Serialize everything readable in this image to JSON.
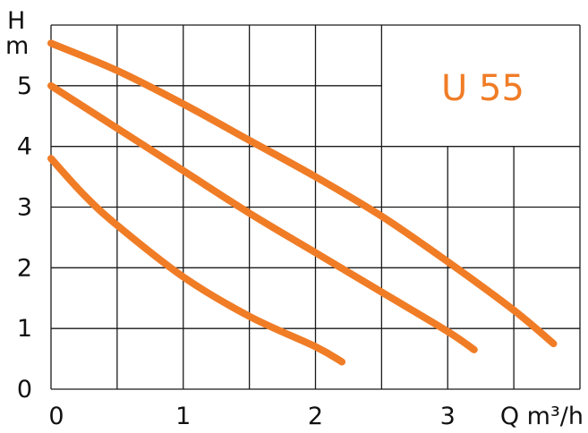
{
  "chart_data": {
    "type": "line",
    "label": "U 55",
    "xlabel": "Q m³/h",
    "ylabel_top": "H",
    "ylabel_unit": "m",
    "xlim": [
      0,
      4
    ],
    "ylim": [
      0,
      6
    ],
    "x_ticks": [
      {
        "value": 0,
        "label": "0"
      },
      {
        "value": 1,
        "label": "1"
      },
      {
        "value": 2,
        "label": "2"
      },
      {
        "value": 3,
        "label": "3"
      }
    ],
    "y_ticks": [
      {
        "value": 0,
        "label": "0"
      },
      {
        "value": 1,
        "label": "1"
      },
      {
        "value": 2,
        "label": "2"
      },
      {
        "value": 3,
        "label": "3"
      },
      {
        "value": 4,
        "label": "4"
      },
      {
        "value": 5,
        "label": "5"
      }
    ],
    "grid": true,
    "colors": {
      "curve": "#f07c26",
      "label": "#f07c26",
      "grid": "#1a1a1a"
    },
    "series": [
      {
        "x": [
          0,
          0.5,
          1,
          1.5,
          2,
          2.5,
          3,
          3.5,
          3.8
        ],
        "y": [
          5.7,
          5.25,
          4.7,
          4.1,
          3.5,
          2.85,
          2.1,
          1.3,
          0.75
        ]
      },
      {
        "x": [
          0,
          0.5,
          1,
          1.5,
          2,
          2.5,
          3,
          3.2
        ],
        "y": [
          5.0,
          4.3,
          3.6,
          2.9,
          2.25,
          1.6,
          0.95,
          0.65
        ]
      },
      {
        "x": [
          0,
          0.25,
          0.5,
          1,
          1.5,
          2,
          2.2
        ],
        "y": [
          3.8,
          3.2,
          2.7,
          1.85,
          1.2,
          0.7,
          0.45
        ]
      }
    ]
  }
}
